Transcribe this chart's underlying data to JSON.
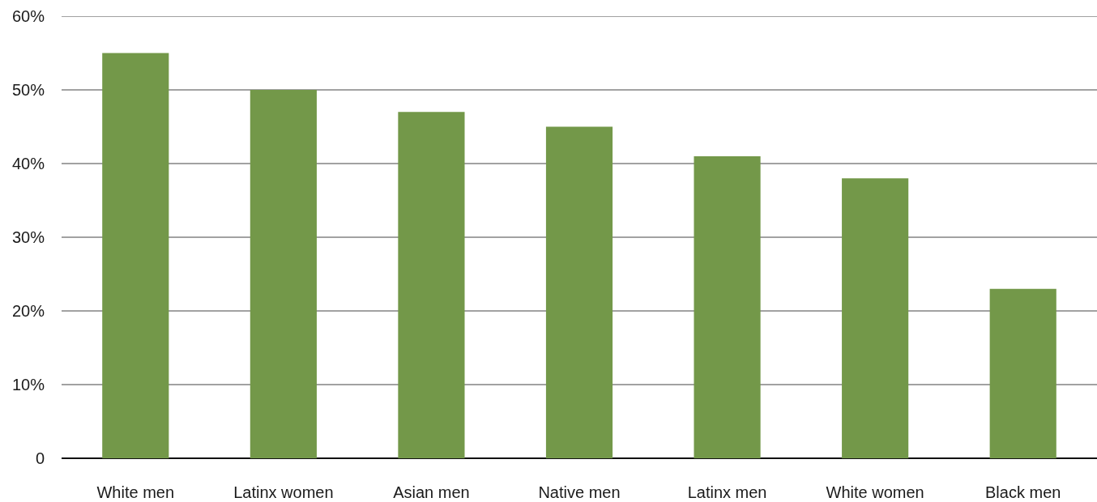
{
  "chart_data": {
    "type": "bar",
    "categories": [
      "White men",
      "Latinx women",
      "Asian men",
      "Native men",
      "Latinx men",
      "White women",
      "Black men"
    ],
    "values": [
      55,
      50,
      47,
      45,
      41,
      38,
      23
    ],
    "color": "#739849",
    "ylim": [
      0,
      60
    ],
    "yticks": [
      0,
      {
        "value": 10,
        "label": "10%"
      },
      {
        "value": 20,
        "label": "20%"
      },
      {
        "value": 30,
        "label": "30%"
      },
      {
        "value": 40,
        "label": "40%"
      },
      {
        "value": 50,
        "label": "50%"
      },
      {
        "value": 60,
        "label": "60%"
      }
    ],
    "grid": "y"
  }
}
